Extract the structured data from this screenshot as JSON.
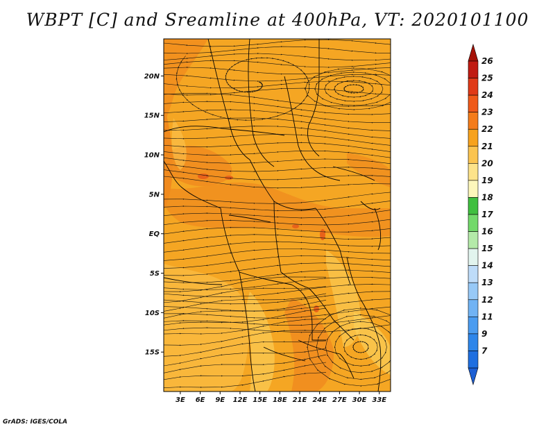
{
  "title": "WBPT [C] and Sreamline at 400hPa, VT: 2020101100",
  "credit": "GrADS: IGES/COLA",
  "map": {
    "lat_ticks": [
      {
        "label": "20N",
        "value": 20
      },
      {
        "label": "15N",
        "value": 15
      },
      {
        "label": "10N",
        "value": 10
      },
      {
        "label": "5N",
        "value": 5
      },
      {
        "label": "EQ",
        "value": 0
      },
      {
        "label": "5S",
        "value": -5
      },
      {
        "label": "10S",
        "value": -10
      },
      {
        "label": "15S",
        "value": -15
      }
    ],
    "lon_ticks": [
      {
        "label": "3E",
        "value": 3
      },
      {
        "label": "6E",
        "value": 6
      },
      {
        "label": "9E",
        "value": 9
      },
      {
        "label": "12E",
        "value": 12
      },
      {
        "label": "15E",
        "value": 15
      },
      {
        "label": "18E",
        "value": 18
      },
      {
        "label": "21E",
        "value": 21
      },
      {
        "label": "24E",
        "value": 24
      },
      {
        "label": "27E",
        "value": 27
      },
      {
        "label": "30E",
        "value": 30
      },
      {
        "label": "33E",
        "value": 33
      }
    ],
    "lat_range": [
      -20,
      24.7
    ],
    "lon_range": [
      0.5,
      34.7
    ],
    "colors": {
      "dominant": "#f5a623",
      "light": "#fbd05a",
      "dark": "#f08a1e",
      "hot": "#e8621a"
    }
  },
  "colorbar": {
    "levels": [
      {
        "label": "7",
        "color": "#1f6fe0"
      },
      {
        "label": "9",
        "color": "#2e86ea"
      },
      {
        "label": "11",
        "color": "#4b9cf0"
      },
      {
        "label": "12",
        "color": "#71b3f4"
      },
      {
        "label": "13",
        "color": "#97c9f7"
      },
      {
        "label": "14",
        "color": "#bedcf9"
      },
      {
        "label": "15",
        "color": "#e2f4ee"
      },
      {
        "label": "16",
        "color": "#b4eaa9"
      },
      {
        "label": "17",
        "color": "#72d96a"
      },
      {
        "label": "18",
        "color": "#3fbf3f"
      },
      {
        "label": "19",
        "color": "#fdf7bb"
      },
      {
        "label": "20",
        "color": "#fde38a"
      },
      {
        "label": "21",
        "color": "#fbc450"
      },
      {
        "label": "22",
        "color": "#f7a21d"
      },
      {
        "label": "23",
        "color": "#f47c1a"
      },
      {
        "label": "24",
        "color": "#ef5a1a"
      },
      {
        "label": "25",
        "color": "#e03a18"
      },
      {
        "label": "26",
        "color": "#c01b12"
      }
    ],
    "top_arrow_color": "#a61208",
    "bottom_arrow_color": "#1c5fd4"
  }
}
